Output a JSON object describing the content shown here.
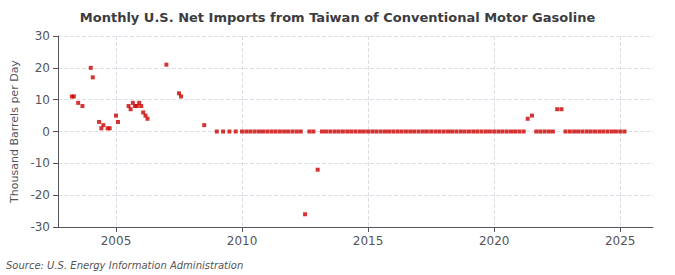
{
  "chart_data": {
    "type": "scatter",
    "title": "Monthly U.S. Net Imports from Taiwan of Conventional Motor Gasoline",
    "ylabel": "Thousand Barrels per Day",
    "annotation": "Source: U.S. Energy Information Administration",
    "color": "#cc0000",
    "marker": "square",
    "grid": true,
    "xlim": [
      2002.7,
      2026.3
    ],
    "xticks": [
      2005,
      2010,
      2015,
      2020,
      2025
    ],
    "ylim": [
      -30,
      30
    ],
    "yticks": [
      -30,
      -20,
      -10,
      0,
      10,
      20,
      30
    ],
    "x": [
      2003.25,
      2003.33,
      2003.5,
      2003.67,
      2004.0,
      2004.08,
      2004.33,
      2004.42,
      2004.5,
      2004.67,
      2004.75,
      2005.0,
      2005.08,
      2005.5,
      2005.58,
      2005.67,
      2005.75,
      2005.83,
      2005.92,
      2006.0,
      2006.08,
      2006.17,
      2006.25,
      2007.0,
      2007.5,
      2007.58,
      2008.5,
      2009.0,
      2009.25,
      2009.5,
      2009.75,
      2010.0,
      2010.17,
      2010.33,
      2010.5,
      2010.67,
      2010.83,
      2011.0,
      2011.17,
      2011.33,
      2011.5,
      2011.67,
      2011.83,
      2012.0,
      2012.17,
      2012.33,
      2012.5,
      2012.67,
      2012.83,
      2013.0,
      2013.17,
      2013.33,
      2013.5,
      2013.67,
      2013.83,
      2014.0,
      2014.17,
      2014.33,
      2014.5,
      2014.67,
      2014.83,
      2015.0,
      2015.17,
      2015.33,
      2015.5,
      2015.67,
      2015.83,
      2016.0,
      2016.17,
      2016.33,
      2016.5,
      2016.67,
      2016.83,
      2017.0,
      2017.17,
      2017.33,
      2017.5,
      2017.67,
      2017.83,
      2018.0,
      2018.17,
      2018.33,
      2018.5,
      2018.67,
      2018.83,
      2019.0,
      2019.17,
      2019.33,
      2019.5,
      2019.67,
      2019.83,
      2020.0,
      2020.17,
      2020.33,
      2020.5,
      2020.67,
      2020.83,
      2021.0,
      2021.17,
      2021.33,
      2021.5,
      2021.67,
      2021.83,
      2022.0,
      2022.17,
      2022.33,
      2022.5,
      2022.67,
      2022.83,
      2023.0,
      2023.17,
      2023.33,
      2023.5,
      2023.67,
      2023.83,
      2024.0,
      2024.17,
      2024.33,
      2024.5,
      2024.67,
      2024.83,
      2025.0,
      2025.17
    ],
    "values": [
      11,
      11,
      9,
      8,
      20,
      17,
      3,
      1,
      2,
      1,
      1,
      5,
      3,
      8,
      7,
      9,
      8,
      8,
      9,
      8,
      6,
      5,
      4,
      21,
      12,
      11,
      2,
      0,
      0,
      0,
      0,
      0,
      0,
      0,
      0,
      0,
      0,
      0,
      0,
      0,
      0,
      0,
      0,
      0,
      0,
      0,
      -26,
      0,
      0,
      -12,
      0,
      0,
      0,
      0,
      0,
      0,
      0,
      0,
      0,
      0,
      0,
      0,
      0,
      0,
      0,
      0,
      0,
      0,
      0,
      0,
      0,
      0,
      0,
      0,
      0,
      0,
      0,
      0,
      0,
      0,
      0,
      0,
      0,
      0,
      0,
      0,
      0,
      0,
      0,
      0,
      0,
      0,
      0,
      0,
      0,
      0,
      0,
      0,
      0,
      4,
      5,
      0,
      0,
      0,
      0,
      0,
      7,
      7,
      0,
      0,
      0,
      0,
      0,
      0,
      0,
      0,
      0,
      0,
      0,
      0,
      0,
      0,
      0
    ]
  }
}
